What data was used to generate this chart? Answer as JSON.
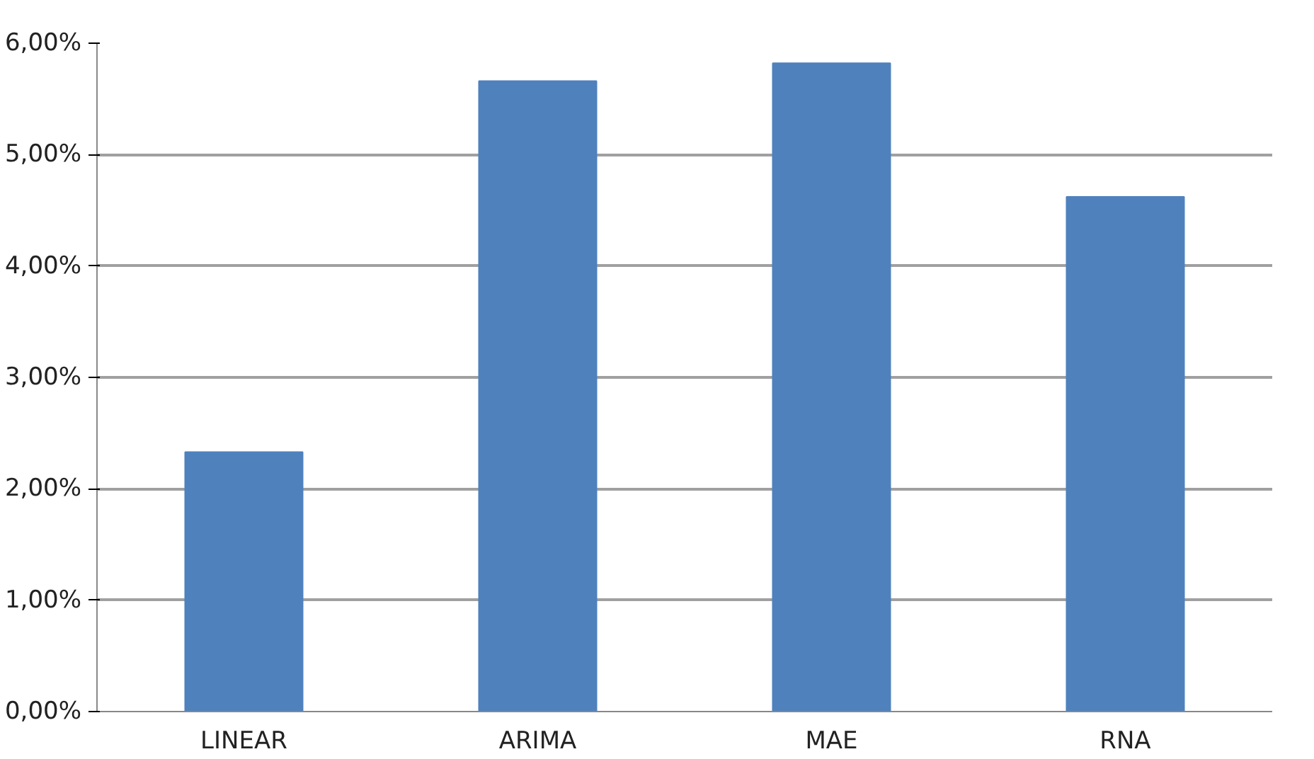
{
  "chart_data": {
    "type": "bar",
    "categories": [
      "LINEAR",
      "ARIMA",
      "MAE",
      "RNA"
    ],
    "values": [
      2.33,
      5.66,
      5.82,
      4.62
    ],
    "color": "#4f81bd",
    "ylim": [
      0,
      6
    ],
    "yticks": [
      {
        "value": 0,
        "label": "0,00%"
      },
      {
        "value": 1,
        "label": "1,00%"
      },
      {
        "value": 2,
        "label": "2,00%"
      },
      {
        "value": 3,
        "label": "3,00%"
      },
      {
        "value": 4,
        "label": "4,00%"
      },
      {
        "value": 5,
        "label": "5,00%"
      },
      {
        "value": 6,
        "label": "6,00%"
      }
    ],
    "grid": "y"
  }
}
